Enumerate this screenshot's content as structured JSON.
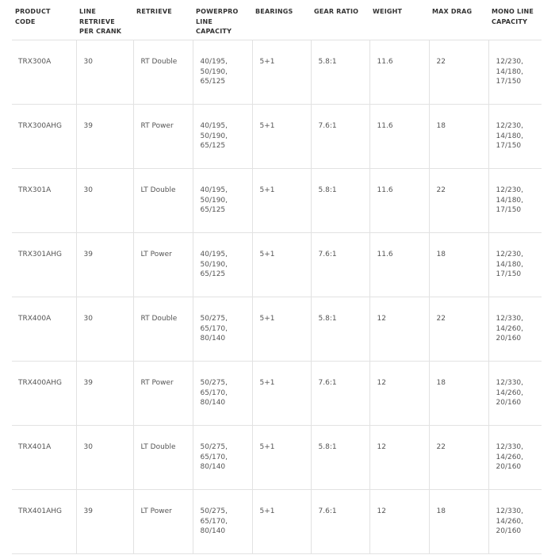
{
  "headers": [
    "PRODUCT CODE",
    "LINE RETRIEVE PER CRANK",
    "RETRIEVE",
    "POWERPRO LINE CAPACITY",
    "BEARINGS",
    "GEAR RATIO",
    "WEIGHT",
    "MAX DRAG",
    "MONO LINE CAPACITY"
  ],
  "rows": [
    [
      "TRX300A",
      "30",
      "RT Double",
      "40/195, 50/190, 65/125",
      "5+1",
      "5.8:1",
      "11.6",
      "22",
      "12/230, 14/180, 17/150"
    ],
    [
      "TRX300AHG",
      "39",
      "RT Power",
      "40/195, 50/190, 65/125",
      "5+1",
      "7.6:1",
      "11.6",
      "18",
      "12/230, 14/180, 17/150"
    ],
    [
      "TRX301A",
      "30",
      "LT Double",
      "40/195, 50/190, 65/125",
      "5+1",
      "5.8:1",
      "11.6",
      "22",
      "12/230, 14/180, 17/150"
    ],
    [
      "TRX301AHG",
      "39",
      "LT Power",
      "40/195, 50/190, 65/125",
      "5+1",
      "7.6:1",
      "11.6",
      "18",
      "12/230, 14/180, 17/150"
    ],
    [
      "TRX400A",
      "30",
      "RT Double",
      "50/275, 65/170, 80/140",
      "5+1",
      "5.8:1",
      "12",
      "22",
      "12/330, 14/260, 20/160"
    ],
    [
      "TRX400AHG",
      "39",
      "RT Power",
      "50/275, 65/170, 80/140",
      "5+1",
      "7.6:1",
      "12",
      "18",
      "12/330, 14/260, 20/160"
    ],
    [
      "TRX401A",
      "30",
      "LT Double",
      "50/275, 65/170, 80/140",
      "5+1",
      "5.8:1",
      "12",
      "22",
      "12/330, 14/260, 20/160"
    ],
    [
      "TRX401AHG",
      "39",
      "LT Power",
      "50/275, 65/170, 80/140",
      "5+1",
      "7.6:1",
      "12",
      "18",
      "12/330, 14/260, 20/160"
    ]
  ]
}
